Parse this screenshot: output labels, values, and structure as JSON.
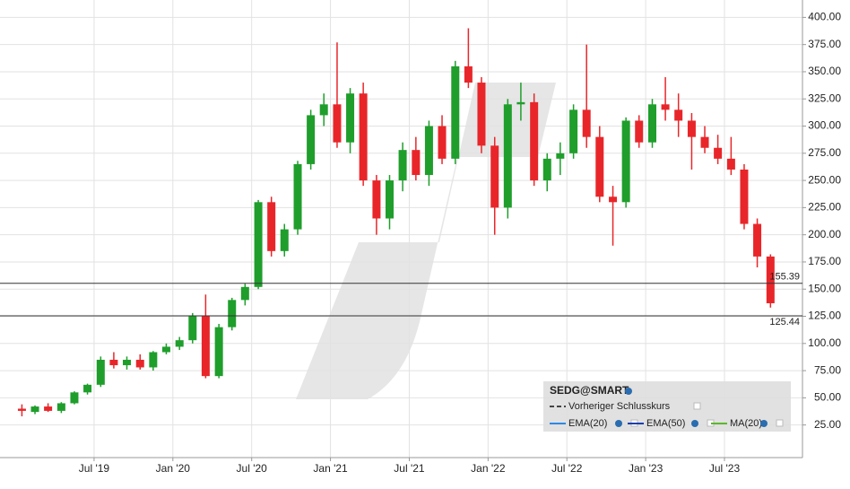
{
  "chart_data": {
    "type": "candlestick",
    "x": [
      2019.042,
      2019.125,
      2019.208,
      2019.292,
      2019.375,
      2019.458,
      2019.542,
      2019.625,
      2019.708,
      2019.792,
      2019.875,
      2019.958,
      2020.042,
      2020.125,
      2020.208,
      2020.292,
      2020.375,
      2020.458,
      2020.542,
      2020.625,
      2020.708,
      2020.792,
      2020.875,
      2020.958,
      2021.042,
      2021.125,
      2021.208,
      2021.292,
      2021.375,
      2021.458,
      2021.542,
      2021.625,
      2021.708,
      2021.792,
      2021.875,
      2021.958,
      2022.042,
      2022.125,
      2022.208,
      2022.292,
      2022.375,
      2022.458,
      2022.542,
      2022.625,
      2022.708,
      2022.792,
      2022.875,
      2022.958,
      2023.042,
      2023.125,
      2023.208,
      2023.292,
      2023.375,
      2023.458,
      2023.542,
      2023.625,
      2023.708,
      2023.792
    ],
    "open": [
      40,
      37,
      42,
      38,
      45,
      55,
      62,
      85,
      80,
      85,
      78,
      92,
      97,
      103,
      125,
      70,
      115,
      140,
      152,
      230,
      185,
      205,
      265,
      310,
      320,
      285,
      330,
      250,
      215,
      250,
      278,
      255,
      300,
      270,
      355,
      340,
      282,
      225,
      320,
      322,
      250,
      270,
      275,
      315,
      290,
      235,
      230,
      305,
      285,
      320,
      315,
      305,
      290,
      280,
      270,
      260,
      210,
      180
    ],
    "high": [
      44,
      43,
      45,
      46,
      56,
      63,
      88,
      92,
      88,
      90,
      93,
      100,
      106,
      128,
      145,
      118,
      142,
      155,
      232,
      235,
      210,
      268,
      315,
      330,
      377,
      335,
      340,
      255,
      255,
      285,
      290,
      305,
      310,
      360,
      390,
      345,
      290,
      325,
      340,
      330,
      275,
      285,
      320,
      375,
      300,
      245,
      308,
      310,
      325,
      345,
      330,
      312,
      300,
      292,
      290,
      265,
      215,
      182
    ],
    "low": [
      33,
      35,
      37,
      36,
      44,
      53,
      60,
      77,
      76,
      76,
      75,
      90,
      94,
      100,
      68,
      68,
      112,
      135,
      150,
      180,
      180,
      200,
      260,
      300,
      280,
      275,
      245,
      200,
      205,
      240,
      250,
      245,
      265,
      265,
      335,
      275,
      200,
      215,
      305,
      245,
      240,
      255,
      270,
      280,
      230,
      190,
      225,
      280,
      280,
      305,
      290,
      260,
      275,
      265,
      255,
      205,
      170,
      133
    ],
    "close": [
      38,
      42,
      38,
      45,
      55,
      62,
      85,
      80,
      85,
      78,
      92,
      97,
      103,
      125,
      70,
      115,
      140,
      152,
      230,
      185,
      205,
      265,
      310,
      320,
      285,
      330,
      250,
      215,
      250,
      278,
      255,
      300,
      270,
      355,
      340,
      282,
      225,
      320,
      322,
      250,
      270,
      275,
      315,
      290,
      235,
      230,
      305,
      285,
      320,
      315,
      305,
      290,
      280,
      270,
      260,
      210,
      180,
      137
    ],
    "up_color": "#1f9e2c",
    "down_color": "#e8262a",
    "xlim": [
      2018.903,
      2023.995
    ],
    "xticks": [
      {
        "value": 2019.5,
        "label": "Jul '19"
      },
      {
        "value": 2020.0,
        "label": "Jan '20"
      },
      {
        "value": 2020.5,
        "label": "Jul '20"
      },
      {
        "value": 2021.0,
        "label": "Jan '21"
      },
      {
        "value": 2021.5,
        "label": "Jul '21"
      },
      {
        "value": 2022.0,
        "label": "Jan '22"
      },
      {
        "value": 2022.5,
        "label": "Jul '22"
      },
      {
        "value": 2023.0,
        "label": "Jan '23"
      },
      {
        "value": 2023.5,
        "label": "Jul '23"
      }
    ],
    "ylim": [
      -5,
      416
    ],
    "yticks": [
      {
        "value": 25,
        "label": "25.00"
      },
      {
        "value": 50,
        "label": "50.00"
      },
      {
        "value": 75,
        "label": "75.00"
      },
      {
        "value": 100,
        "label": "100.00"
      },
      {
        "value": 125,
        "label": "125.00"
      },
      {
        "value": 150,
        "label": "150.00"
      },
      {
        "value": 175,
        "label": "175.00"
      },
      {
        "value": 200,
        "label": "200.00"
      },
      {
        "value": 225,
        "label": "225.00"
      },
      {
        "value": 250,
        "label": "250.00"
      },
      {
        "value": 275,
        "label": "275.00"
      },
      {
        "value": 300,
        "label": "300.00"
      },
      {
        "value": 325,
        "label": "325.00"
      },
      {
        "value": 350,
        "label": "350.00"
      },
      {
        "value": 375,
        "label": "375.00"
      },
      {
        "value": 400,
        "label": "400.00"
      }
    ],
    "ref_lines": [
      155.39,
      125.44
    ],
    "grid": true,
    "legend_title": "SEDG@SMART",
    "legend_items": [
      {
        "name": "Vorheriger Schlusskurs",
        "color": "#444444"
      },
      {
        "name": "EMA(20)",
        "color": "#2a8ae6"
      },
      {
        "name": "EMA(50)",
        "color": "#1a3fb0"
      },
      {
        "name": "MA(20)",
        "color": "#5cb82c"
      }
    ]
  }
}
